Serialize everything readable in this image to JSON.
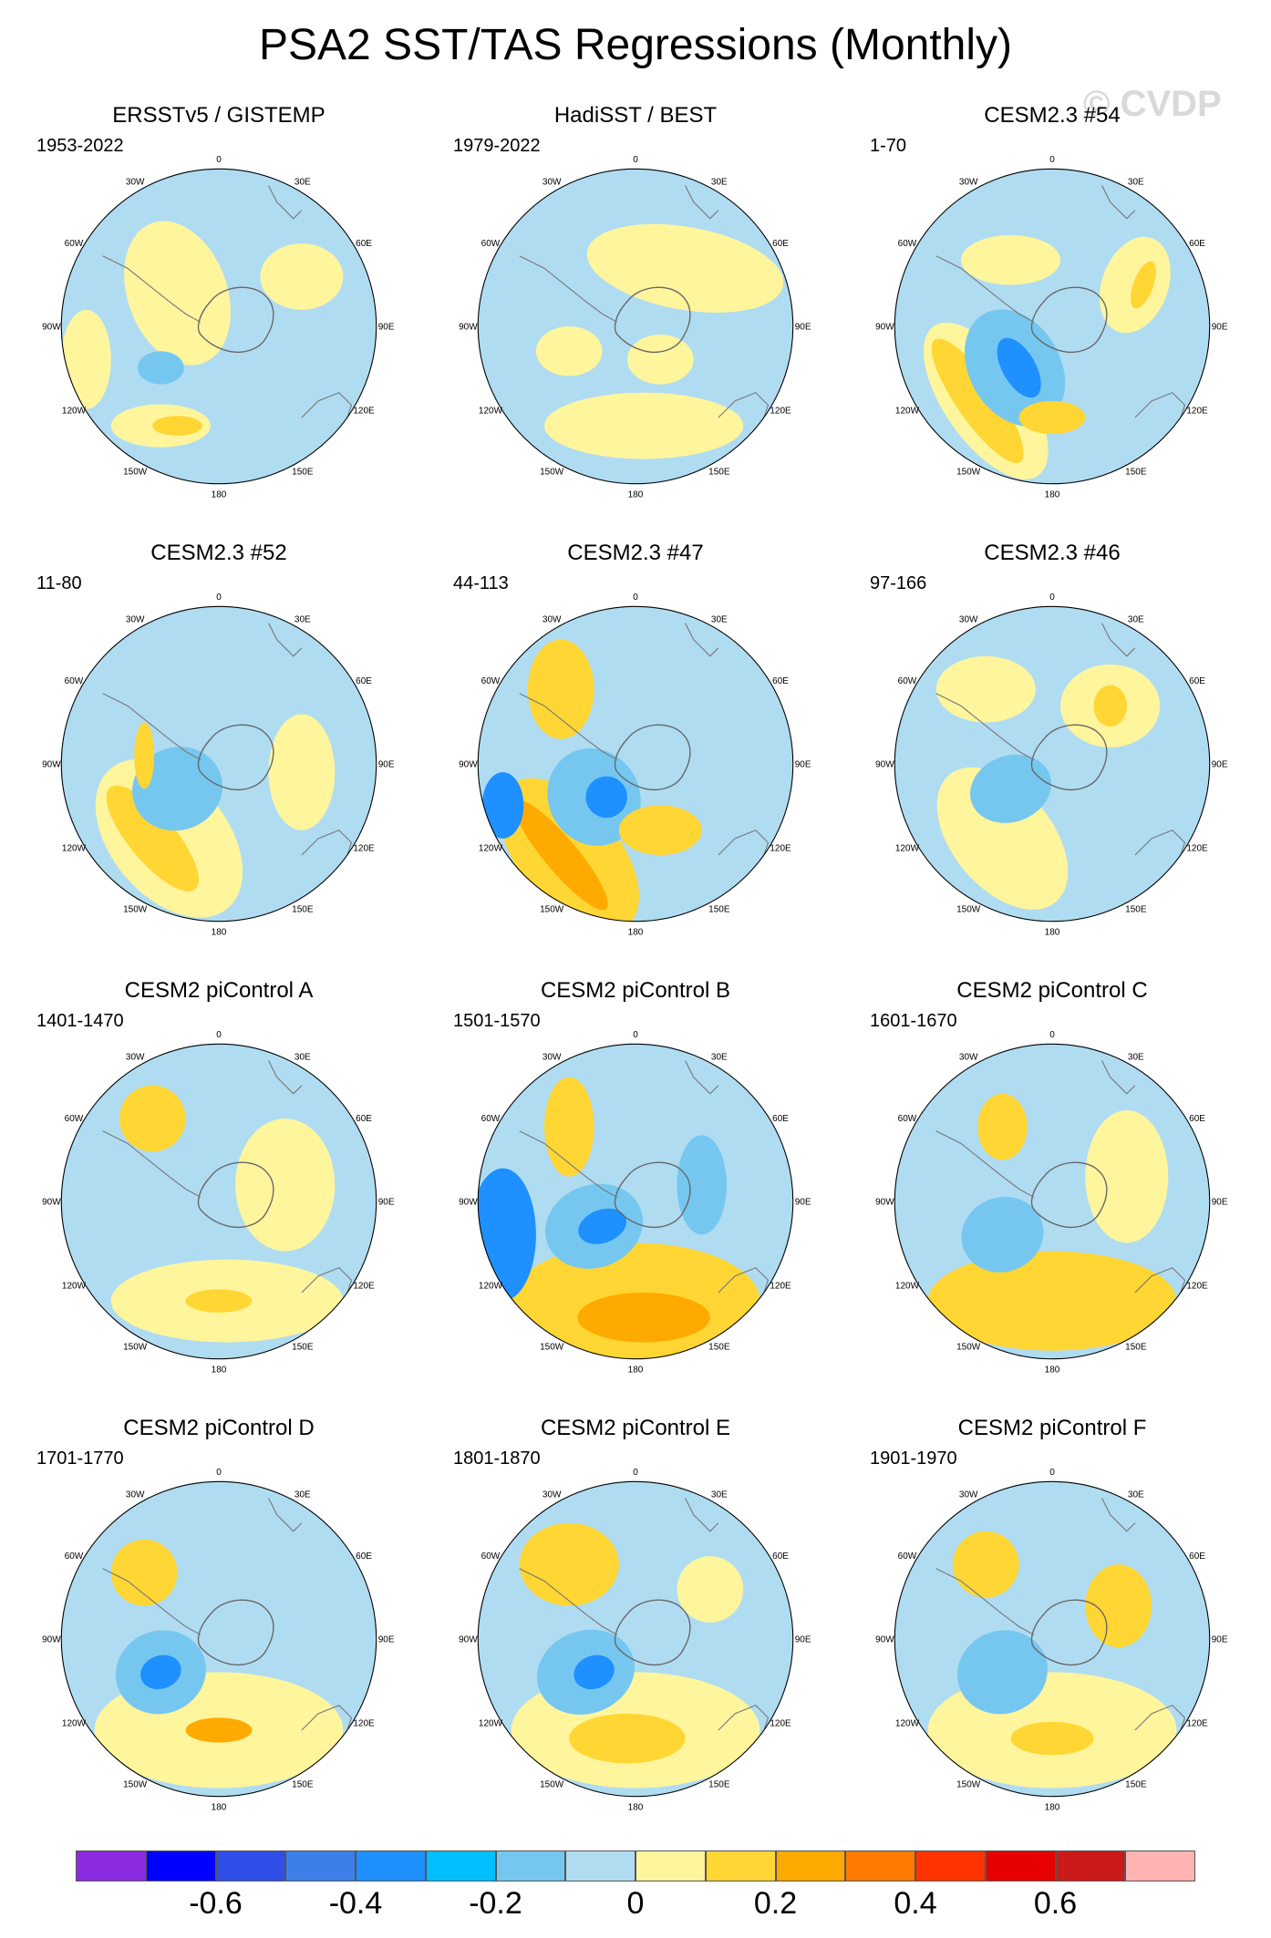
{
  "title": "PSA2 SST/TAS Regressions (Monthly)",
  "watermark": "© CVDP",
  "lon_labels": [
    "0",
    "30E",
    "60E",
    "90E",
    "120E",
    "150E",
    "180",
    "150W",
    "120W",
    "90W",
    "60W",
    "30W"
  ],
  "panels": [
    {
      "title": "ERSSTv5 / GISTEMP",
      "years": "1953-2022"
    },
    {
      "title": "HadiSST / BEST",
      "years": "1979-2022"
    },
    {
      "title": "CESM2.3 #54",
      "years": "1-70"
    },
    {
      "title": "CESM2.3 #52",
      "years": "11-80"
    },
    {
      "title": "CESM2.3 #47",
      "years": "44-113"
    },
    {
      "title": "CESM2.3 #46",
      "years": "97-166"
    },
    {
      "title": "CESM2 piControl A",
      "years": "1401-1470"
    },
    {
      "title": "CESM2 piControl B",
      "years": "1501-1570"
    },
    {
      "title": "CESM2 piControl C",
      "years": "1601-1670"
    },
    {
      "title": "CESM2 piControl D",
      "years": "1701-1770"
    },
    {
      "title": "CESM2 piControl E",
      "years": "1801-1870"
    },
    {
      "title": "CESM2 piControl F",
      "years": "1901-1970"
    }
  ],
  "colorbar": {
    "colors": [
      "#8a2be2",
      "#0000ff",
      "#2f4fe8",
      "#3d7fe8",
      "#1e90ff",
      "#00bfff",
      "#76c7f0",
      "#b0dcf2",
      "#fff59d",
      "#ffd633",
      "#ffaa00",
      "#ff7a00",
      "#ff3300",
      "#e60000",
      "#cc1a1a",
      "#ffb3b3"
    ],
    "labels": [
      "-0.6",
      "-0.4",
      "-0.2",
      "0",
      "0.2",
      "0.4",
      "0.6"
    ]
  },
  "legend_colors": {
    "blue_light": "#b0dcf2",
    "blue_mid": "#76c7f0",
    "blue_strong": "#1e90ff",
    "yellow_light": "#fff59d",
    "yellow_mid": "#ffd633",
    "orange": "#ffaa00"
  }
}
